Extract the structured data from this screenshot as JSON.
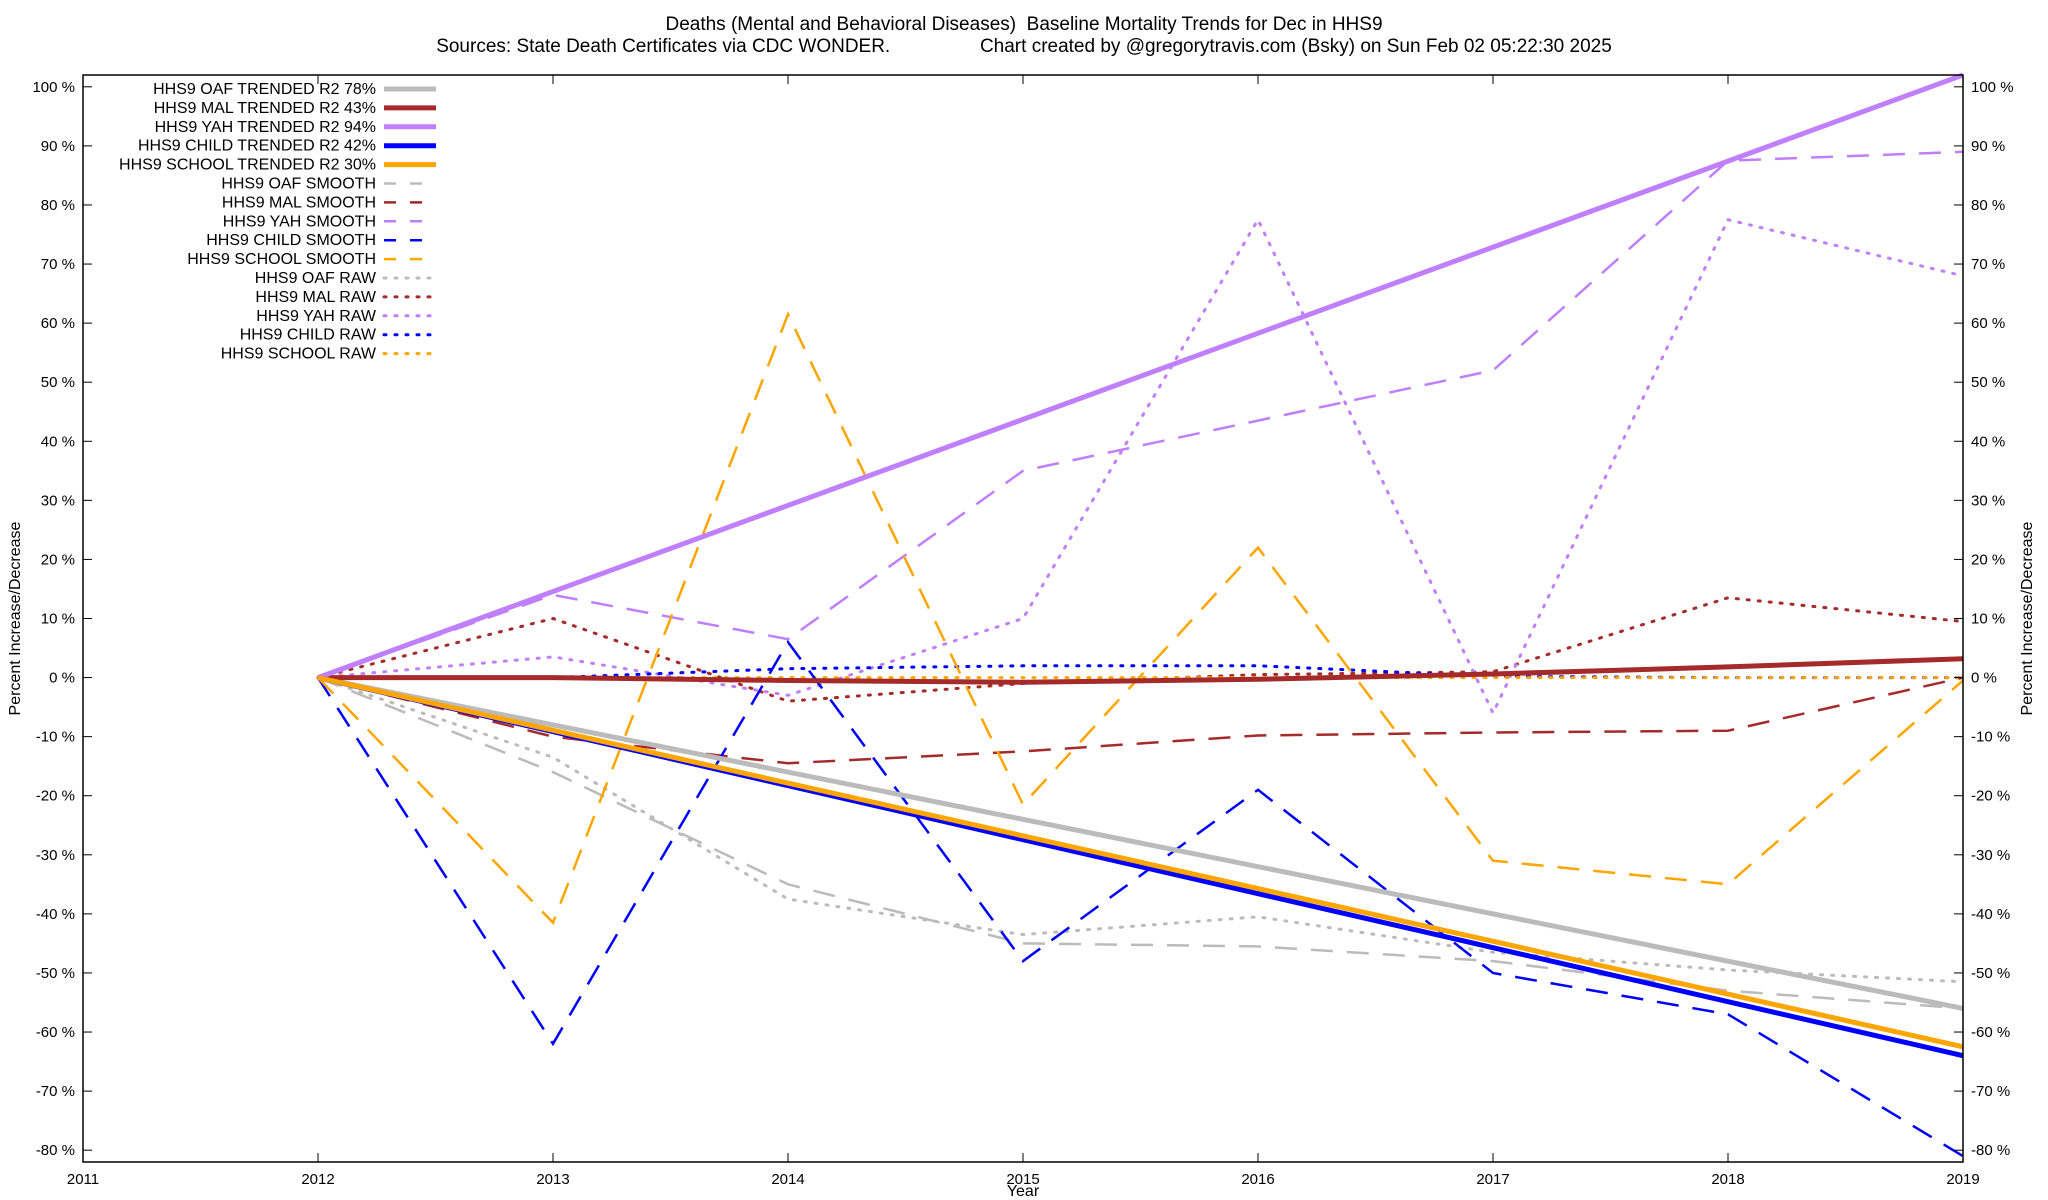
{
  "chart_data": {
    "type": "line",
    "title": "Deaths (Mental and Behavioral Diseases)  Baseline Mortality Trends for Dec in HHS9",
    "subtitle": "Sources: State Death Certificates via CDC WONDER.                 Chart created by @gregorytravis.com (Bsky) on Sun Feb 02 05:22:30 2025",
    "xlabel": "Year",
    "ylabel": "Percent Increase/Decrease",
    "y2label": "Percent Increase/Decrease",
    "xlim": [
      2011,
      2019
    ],
    "ylim": [
      -82,
      102
    ],
    "x_ticks": [
      2011,
      2012,
      2013,
      2014,
      2015,
      2016,
      2017,
      2018,
      2019
    ],
    "y_ticks": [
      {
        "v": 100,
        "label": "100 %"
      },
      {
        "v": 90,
        "label": "90 %"
      },
      {
        "v": 80,
        "label": "80 %"
      },
      {
        "v": 70,
        "label": "70 %"
      },
      {
        "v": 60,
        "label": "60 %"
      },
      {
        "v": 50,
        "label": "50 %"
      },
      {
        "v": 40,
        "label": "40 %"
      },
      {
        "v": 30,
        "label": "30 %"
      },
      {
        "v": 20,
        "label": "20 %"
      },
      {
        "v": 10,
        "label": "10 %"
      },
      {
        "v": 0,
        "label": "0 %"
      },
      {
        "v": -10,
        "label": "-10 %"
      },
      {
        "v": -20,
        "label": "-20 %"
      },
      {
        "v": -30,
        "label": "-30 %"
      },
      {
        "v": -40,
        "label": "-40 %"
      },
      {
        "v": -50,
        "label": "-50 %"
      },
      {
        "v": -60,
        "label": "-60 %"
      },
      {
        "v": -70,
        "label": "-70 %"
      },
      {
        "v": -80,
        "label": "-80 %"
      }
    ],
    "grid": false,
    "legend_position": "top-left",
    "series": [
      {
        "name": "HHS9 OAF TRENDED R2  78%",
        "style": "solid",
        "color": "#bbbbbb",
        "x": [
          2012,
          2019
        ],
        "y": [
          0,
          -56
        ]
      },
      {
        "name": "HHS9 MAL TRENDED R2  43%",
        "style": "solid",
        "color": "#a52a2a",
        "x": [
          2012,
          2013,
          2014,
          2015,
          2016,
          2017,
          2018,
          2019
        ],
        "y": [
          0,
          0,
          -0.5,
          -0.8,
          -0.3,
          0.6,
          1.8,
          3.2
        ]
      },
      {
        "name": "HHS9 YAH TRENDED R2  94%",
        "style": "solid",
        "color": "#bf7fff",
        "x": [
          2012,
          2019
        ],
        "y": [
          0,
          102
        ]
      },
      {
        "name": "HHS9 CHILD TRENDED R2  42%",
        "style": "solid",
        "color": "#0000ff",
        "x": [
          2012,
          2019
        ],
        "y": [
          0,
          -64
        ]
      },
      {
        "name": "HHS9 SCHOOL TRENDED R2  30%",
        "style": "solid",
        "color": "#ffa500",
        "x": [
          2012,
          2019
        ],
        "y": [
          0,
          -62.5
        ]
      },
      {
        "name": "HHS9 OAF SMOOTH",
        "style": "dashed",
        "color": "#bbbbbb",
        "x": [
          2012,
          2013,
          2014,
          2015,
          2016,
          2017,
          2018,
          2019
        ],
        "y": [
          0,
          -16,
          -35,
          -45,
          -45.5,
          -48,
          -53,
          -56
        ]
      },
      {
        "name": "HHS9 MAL SMOOTH",
        "style": "dashed",
        "color": "#a52a2a",
        "x": [
          2012,
          2013,
          2014,
          2015,
          2016,
          2017,
          2018,
          2019
        ],
        "y": [
          0,
          -10,
          -14.5,
          -12.5,
          -9.8,
          -9.3,
          -9,
          0
        ]
      },
      {
        "name": "HHS9 YAH SMOOTH",
        "style": "dashed",
        "color": "#bf7fff",
        "x": [
          2012,
          2013,
          2014,
          2015,
          2016,
          2017,
          2018,
          2019
        ],
        "y": [
          0,
          14,
          6.5,
          35,
          43.5,
          52,
          87.5,
          89
        ]
      },
      {
        "name": "HHS9 CHILD SMOOTH",
        "style": "dashed",
        "color": "#0000ff",
        "x": [
          2012,
          2013,
          2014,
          2015,
          2016,
          2017,
          2018,
          2019
        ],
        "y": [
          0,
          -62,
          6,
          -48,
          -19,
          -50,
          -57,
          -81
        ]
      },
      {
        "name": "HHS9 SCHOOL SMOOTH",
        "style": "dashed",
        "color": "#ffa500",
        "x": [
          2012,
          2013,
          2014,
          2015,
          2016,
          2017,
          2018,
          2019
        ],
        "y": [
          0,
          -41.5,
          61.5,
          -21.5,
          22,
          -31,
          -35,
          -0.5
        ]
      },
      {
        "name": "HHS9 OAF RAW",
        "style": "dotted",
        "color": "#bbbbbb",
        "x": [
          2012,
          2013,
          2014,
          2015,
          2016,
          2017,
          2018,
          2019
        ],
        "y": [
          0,
          -13.5,
          -37.5,
          -43.5,
          -40.5,
          -46.5,
          -49.5,
          -51.5
        ]
      },
      {
        "name": "HHS9 MAL RAW",
        "style": "dotted",
        "color": "#a52a2a",
        "x": [
          2012,
          2013,
          2014,
          2015,
          2016,
          2017,
          2018,
          2019
        ],
        "y": [
          0,
          10,
          -4,
          -1,
          0.5,
          1,
          13.5,
          9.5
        ]
      },
      {
        "name": "HHS9 YAH RAW",
        "style": "dotted",
        "color": "#bf7fff",
        "x": [
          2012,
          2013,
          2014,
          2015,
          2016,
          2017,
          2018,
          2019
        ],
        "y": [
          0,
          3.5,
          -3,
          10,
          77.5,
          -6,
          77.5,
          68
        ]
      },
      {
        "name": "HHS9 CHILD RAW",
        "style": "dotted",
        "color": "#0000ff",
        "x": [
          2012,
          2013,
          2014,
          2015,
          2016,
          2017,
          2018,
          2019
        ],
        "y": [
          0,
          0,
          1.5,
          2,
          2,
          0.2,
          0,
          0
        ]
      },
      {
        "name": "HHS9 SCHOOL RAW",
        "style": "dotted",
        "color": "#ffa500",
        "x": [
          2012,
          2019
        ],
        "y": [
          0,
          0
        ]
      }
    ]
  }
}
